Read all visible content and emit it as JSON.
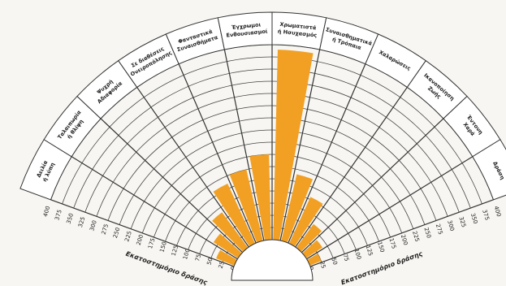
{
  "chart_data": {
    "type": "radial_bar",
    "categories": [
      [
        "Δειλία",
        "ή λύπη"
      ],
      [
        "Ταλαιπωρία",
        "ή θλίψη"
      ],
      [
        "Ψυχρή",
        "Αδιαφορία"
      ],
      [
        "Σε διαθέσεις",
        "Ονειροπόλησης"
      ],
      [
        "Φανταστικά",
        "Συναισθήματα"
      ],
      [
        "Έγχρωμοι",
        "Ενθουσιασμοί"
      ],
      [
        "Χρωματιστά",
        "ή Ησυχασμός"
      ],
      [
        "Συναισθηματικά",
        "ή Τρόπαια"
      ],
      [
        "Χαλαρώσεις"
      ],
      [
        "Ικανοποίηση",
        "Ζωής"
      ],
      [
        "Έντονη",
        "Χαρά"
      ],
      [
        "Δράση"
      ]
    ],
    "values": [
      40,
      60,
      90,
      135,
      150,
      175,
      390,
      140,
      105,
      60,
      40,
      25
    ],
    "color": "#f2a024",
    "ylim": [
      0,
      400
    ],
    "yticks": [
      0,
      25,
      50,
      75,
      100,
      125,
      150,
      175,
      200,
      225,
      250,
      275,
      300,
      325,
      350,
      375,
      400
    ],
    "axis_labels": [
      "Εκατοστημόριο δράσης",
      "Εκατοστημόριο δράσης"
    ],
    "grid": true
  }
}
